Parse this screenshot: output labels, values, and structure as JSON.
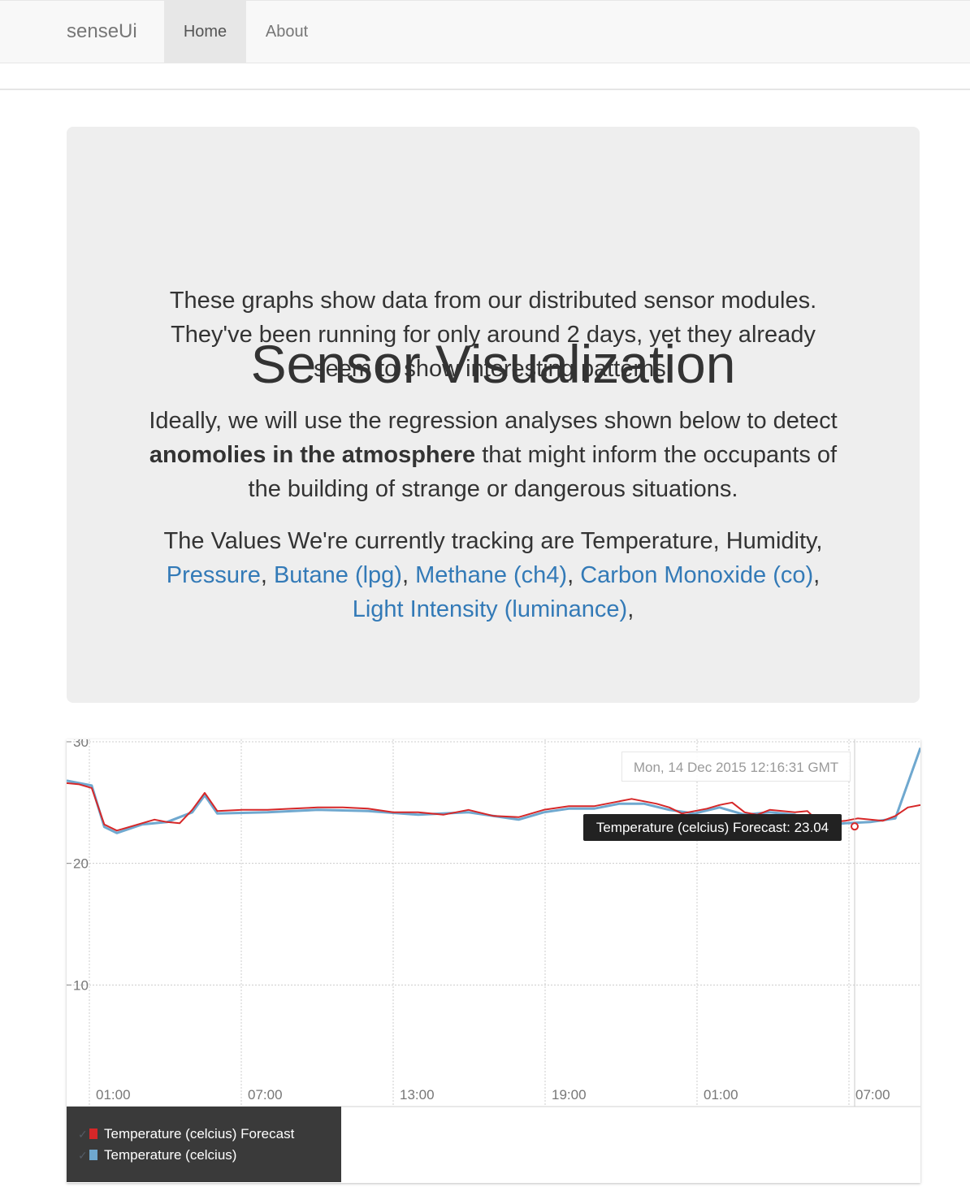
{
  "navbar": {
    "brand": "senseUi",
    "items": [
      {
        "label": "Home",
        "active": true
      },
      {
        "label": "About",
        "active": false
      }
    ]
  },
  "jumbotron": {
    "title": "Sensor Visualization",
    "para1": "These graphs show data from our distributed sensor modules. They've been running for only around 2 days, yet they already seem to show interesting patterns.",
    "para2_before": "Ideally, we will use the regression analyses shown below to detect ",
    "para2_bold": "anomolies in the atmosphere",
    "para2_after": " that might inform the occupants of the building of strange or dangerous situations.",
    "para3_intro": "The Values We're currently tracking are Temperature, Humidity,",
    "links": [
      "Pressure",
      "Butane (lpg)",
      "Methane (ch4)",
      "Carbon Monoxide (co)",
      "Light Intensity (luminance)"
    ],
    "sep": ", ",
    "trailing": ","
  },
  "chart": {
    "hover_time": "Mon, 14 Dec 2015 12:16:31 GMT",
    "hover_value": "Temperature (celcius) Forecast: 23.04",
    "legend": [
      {
        "check": "✓",
        "name": "Temperature (celcius) Forecast",
        "color": "#d62728"
      },
      {
        "check": "✓",
        "name": "Temperature (celcius)",
        "color": "#6fa8cf"
      }
    ]
  },
  "chart_data": {
    "type": "line",
    "y_ticks": [
      "10",
      "20",
      "30"
    ],
    "x_ticks": [
      "01:00",
      "07:00",
      "13:00",
      "19:00",
      "01:00",
      "07:00"
    ],
    "ylim": [
      0,
      30
    ],
    "xlim": [
      0,
      34
    ],
    "grid": true,
    "legend_position": "bottom-left",
    "series": [
      {
        "name": "Temperature (celcius) Forecast",
        "color": "#d62728",
        "points": [
          [
            0,
            26.6
          ],
          [
            0.5,
            26.5
          ],
          [
            1,
            26.2
          ],
          [
            1.5,
            23.2
          ],
          [
            2,
            22.7
          ],
          [
            2.5,
            23.0
          ],
          [
            3,
            23.3
          ],
          [
            3.5,
            23.6
          ],
          [
            4,
            23.4
          ],
          [
            4.5,
            23.3
          ],
          [
            5,
            24.4
          ],
          [
            5.5,
            25.8
          ],
          [
            6,
            24.3
          ],
          [
            7,
            24.4
          ],
          [
            8,
            24.4
          ],
          [
            9,
            24.5
          ],
          [
            10,
            24.6
          ],
          [
            11,
            24.6
          ],
          [
            12,
            24.5
          ],
          [
            13,
            24.2
          ],
          [
            14,
            24.2
          ],
          [
            15,
            24.0
          ],
          [
            16,
            24.4
          ],
          [
            17,
            23.9
          ],
          [
            18,
            23.8
          ],
          [
            18.5,
            24.1
          ],
          [
            19,
            24.4
          ],
          [
            20,
            24.7
          ],
          [
            21,
            24.7
          ],
          [
            21.5,
            24.9
          ],
          [
            22,
            25.1
          ],
          [
            22.5,
            25.3
          ],
          [
            23,
            25.1
          ],
          [
            23.5,
            24.9
          ],
          [
            24,
            24.6
          ],
          [
            24.5,
            24.1
          ],
          [
            25,
            24.3
          ],
          [
            25.5,
            24.5
          ],
          [
            26,
            24.8
          ],
          [
            26.5,
            25.0
          ],
          [
            27,
            24.2
          ],
          [
            27.5,
            24.0
          ],
          [
            28,
            24.4
          ],
          [
            28.5,
            24.3
          ],
          [
            29,
            24.2
          ],
          [
            29.5,
            24.3
          ],
          [
            30,
            23.3
          ],
          [
            30.5,
            23.4
          ],
          [
            31,
            23.5
          ],
          [
            31.5,
            23.7
          ],
          [
            32,
            23.6
          ],
          [
            32.5,
            23.5
          ],
          [
            33,
            23.9
          ],
          [
            33.5,
            24.6
          ],
          [
            34,
            24.8
          ]
        ]
      },
      {
        "name": "Temperature (celcius)",
        "color": "#6fa8cf",
        "points": [
          [
            0,
            26.8
          ],
          [
            1,
            26.4
          ],
          [
            1.5,
            23.0
          ],
          [
            2,
            22.5
          ],
          [
            3,
            23.2
          ],
          [
            4,
            23.4
          ],
          [
            5,
            24.2
          ],
          [
            5.5,
            25.6
          ],
          [
            6,
            24.1
          ],
          [
            8,
            24.2
          ],
          [
            10,
            24.4
          ],
          [
            12,
            24.3
          ],
          [
            14,
            24.0
          ],
          [
            16,
            24.2
          ],
          [
            18,
            23.6
          ],
          [
            19,
            24.2
          ],
          [
            20,
            24.5
          ],
          [
            21,
            24.5
          ],
          [
            22,
            24.9
          ],
          [
            23,
            24.9
          ],
          [
            24,
            24.4
          ],
          [
            25,
            24.1
          ],
          [
            26,
            24.6
          ],
          [
            27,
            24.0
          ],
          [
            28,
            24.2
          ],
          [
            29,
            24.0
          ],
          [
            30,
            23.1
          ],
          [
            31,
            23.3
          ],
          [
            32,
            23.4
          ],
          [
            33,
            23.7
          ],
          [
            34,
            29.5
          ]
        ]
      }
    ]
  }
}
